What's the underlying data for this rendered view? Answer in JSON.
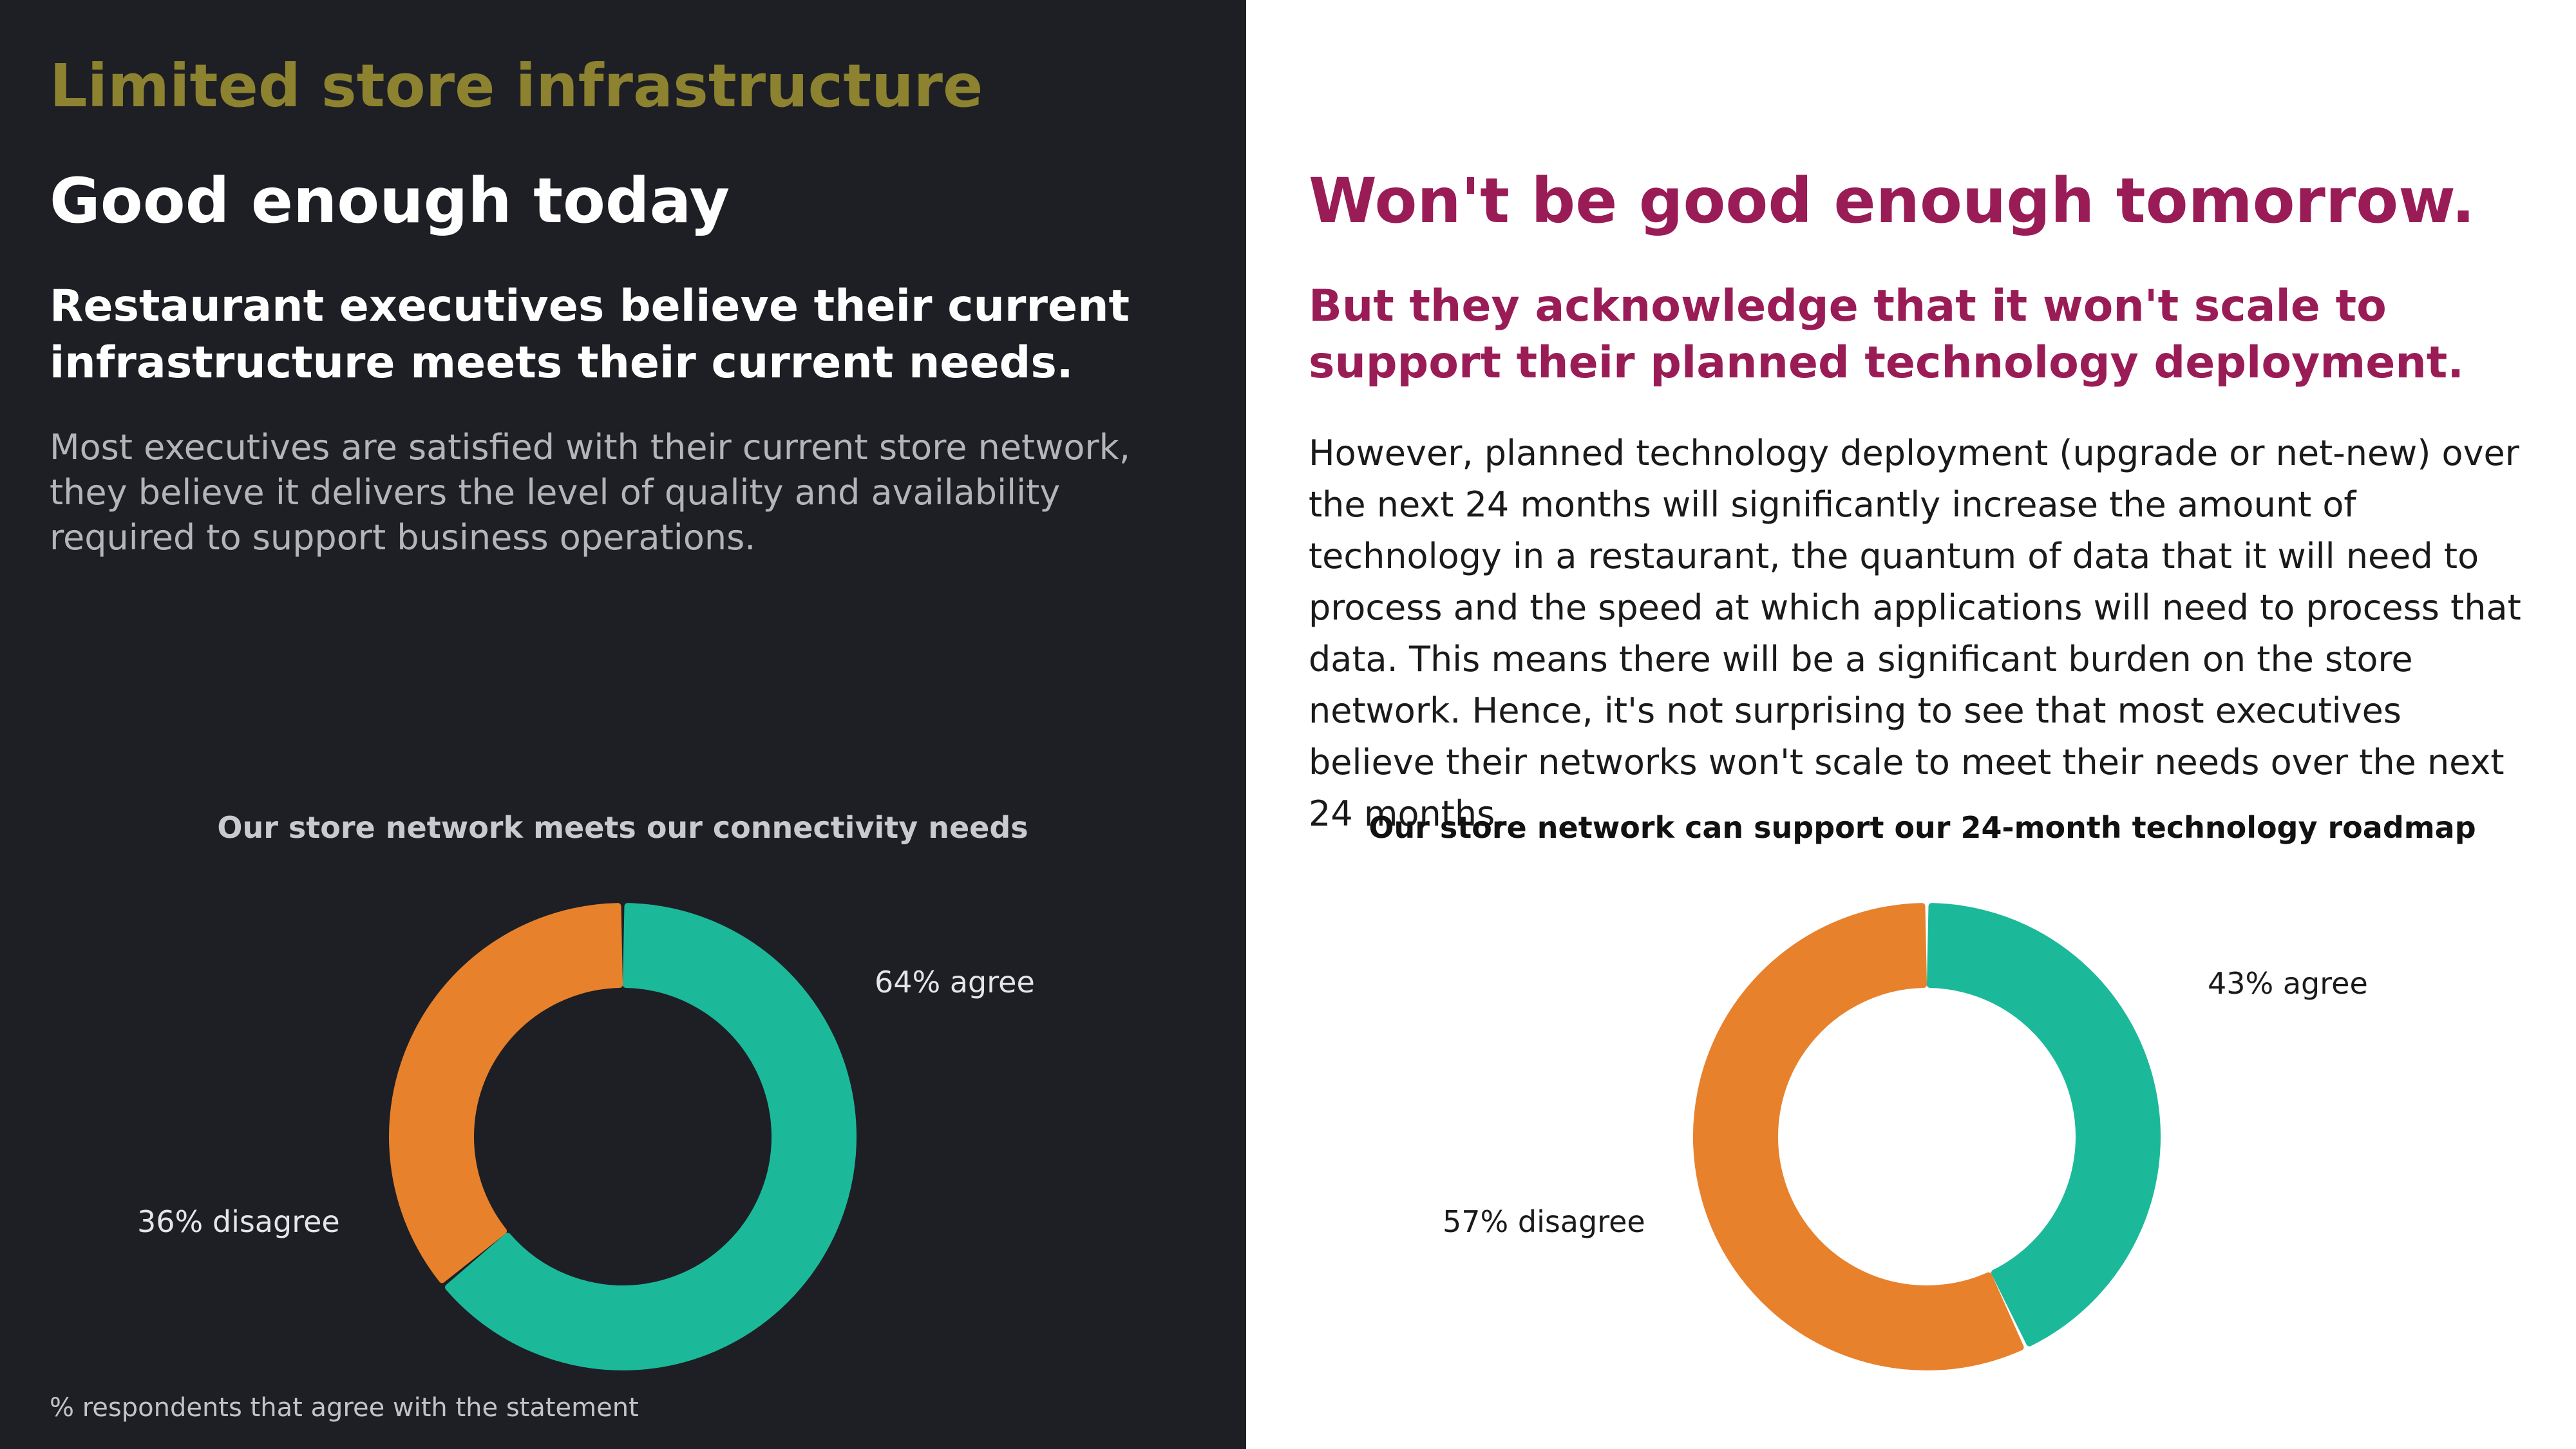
{
  "header": {
    "section_title": "Limited store infrastructure"
  },
  "left": {
    "headline": "Good enough today",
    "subhead": "Restaurant executives believe their current infrastructure meets their current needs.",
    "body": "Most executives are satisfied with their current store network, they believe it delivers the level of quality and availability required to support business operations.",
    "footnote": "% respondents that agree with the statement"
  },
  "right": {
    "headline": "Won't be good enough tomorrow.",
    "subhead": "But they acknowledge that it won't scale to support their planned technology deployment.",
    "body": "However, planned technology deployment (upgrade or net-new) over the next 24 months will significantly increase the amount of technology in a restaurant, the quantum of data that it will need to process and the speed at which applications will need to process that data. This means there will be a significant burden on the store network. Hence, it's not surprising to see that most executives believe their networks won't scale to meet their needs over the next 24 months."
  },
  "chart_data": [
    {
      "type": "pie",
      "title": "Our store network meets our connectivity needs",
      "slices": [
        {
          "label": "64% agree",
          "value": 64,
          "color": "#1bb99a"
        },
        {
          "label": "36% disagree",
          "value": 36,
          "color": "#e8812c"
        }
      ]
    },
    {
      "type": "pie",
      "title": "Our store network can support our 24-month technology roadmap",
      "slices": [
        {
          "label": "43% agree",
          "value": 43,
          "color": "#1bb99a"
        },
        {
          "label": "57% disagree",
          "value": 57,
          "color": "#e8812c"
        }
      ]
    }
  ]
}
